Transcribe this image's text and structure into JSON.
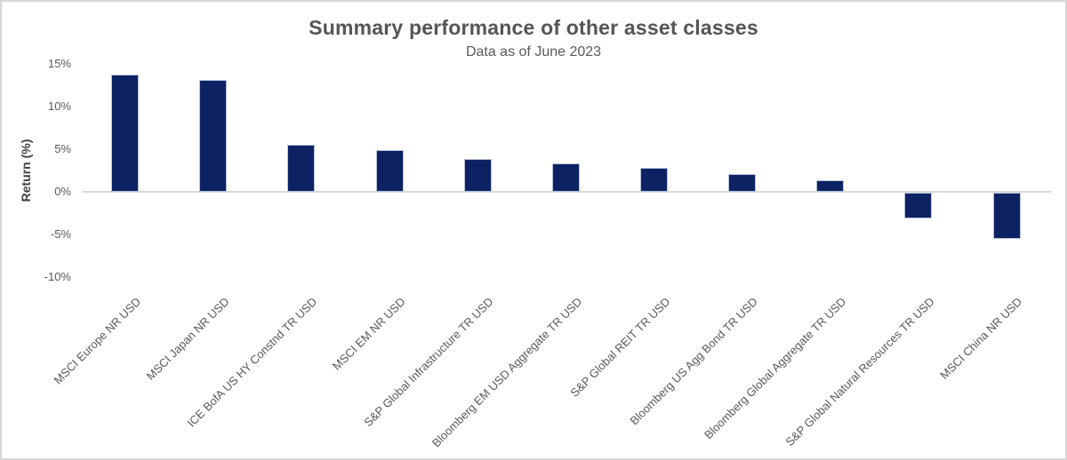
{
  "chart_data": {
    "type": "bar",
    "title": "Summary performance of other asset classes",
    "subtitle": "Data as of June 2023",
    "ylabel": "Return (%)",
    "xlabel": "",
    "categories": [
      "MSCI Europe NR USD",
      "MSCI Japan NR USD",
      "ICE BofA US HY Constnd TR USD",
      "MSCI EM NR USD",
      "S&P Global Infrastructure TR USD",
      "Bloomberg EM USD Aggregate TR USD",
      "S&P Global REIT TR USD",
      "Bloomberg US Agg Bond TR USD",
      "Bloomberg Global Aggregate TR USD",
      "S&P Global Natural Resources TR USD",
      "MSCI China NR USD"
    ],
    "values": [
      13.7,
      13.1,
      5.5,
      4.9,
      3.9,
      3.3,
      2.8,
      2.1,
      1.4,
      -3.0,
      -5.4
    ],
    "yticks": [
      15,
      10,
      5,
      0,
      -5,
      -10
    ],
    "ytick_labels": [
      "15%",
      "10%",
      "5%",
      "0%",
      "-5%",
      "-10%"
    ],
    "ylim": [
      -10,
      15
    ],
    "grid": false,
    "legend": false,
    "colors": {
      "bar_fill": "#0c2262",
      "bar_border": "#b9c3da",
      "axis_line": "#d9d9d9",
      "title_text": "#555555",
      "label_text": "#595959"
    }
  }
}
